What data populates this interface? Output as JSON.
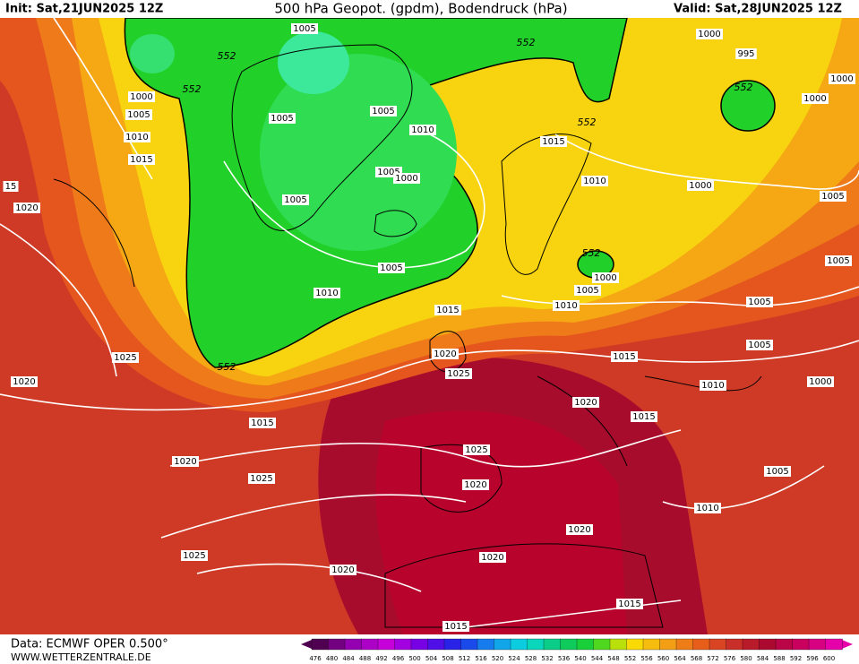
{
  "header": {
    "init": "Init: Sat,21JUN2025 12Z",
    "title": "500 hPa Geopot. (gpdm), Bodendruck (hPa)",
    "valid": "Valid: Sat,28JUN2025 12Z"
  },
  "footer": {
    "source": "Data: ECMWF OPER 0.500°",
    "website": "WWW.WETTERZENTRALE.DE"
  },
  "legend": {
    "values": [
      476,
      480,
      484,
      488,
      492,
      496,
      500,
      504,
      508,
      512,
      516,
      520,
      524,
      528,
      532,
      536,
      540,
      544,
      548,
      552,
      556,
      560,
      564,
      568,
      572,
      576,
      580,
      584,
      588,
      592,
      596,
      600
    ]
  },
  "map": {
    "isobar_labels": [
      "1005",
      "1000",
      "995",
      "1000",
      "1000",
      "1005",
      "1005",
      "1005",
      "1010",
      "1000",
      "1010",
      "1015",
      "1015",
      "1005",
      "1000",
      "1010",
      "1000",
      "15",
      "1005",
      "1005",
      "1020",
      "1000",
      "1005",
      "1005",
      "1005",
      "1010",
      "1010",
      "1015",
      "1005",
      "1005",
      "1025",
      "1020",
      "1015",
      "1025",
      "1020",
      "1010",
      "1000",
      "1020",
      "1015",
      "1015",
      "1025",
      "1020",
      "1005",
      "1025",
      "1020",
      "1010",
      "1020",
      "1025",
      "1020",
      "1020",
      "1015",
      "1015"
    ],
    "geopotential_labels": [
      "552",
      "552",
      "552",
      "552",
      "552",
      "552",
      "552"
    ]
  }
}
